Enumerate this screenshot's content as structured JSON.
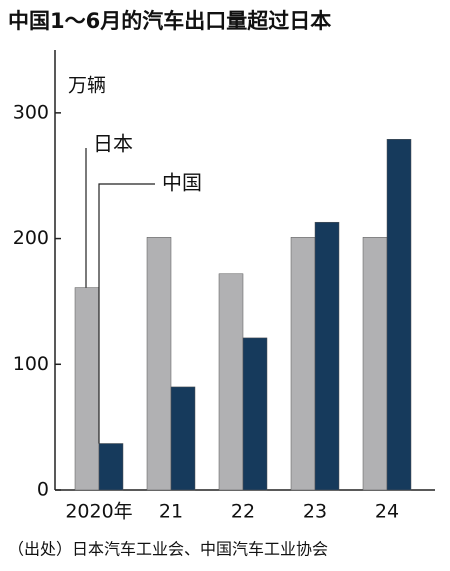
{
  "chart_data": {
    "type": "bar",
    "title": "中国1～6月的汽车出口量超过日本",
    "y_label": "万辆",
    "source": "（出处）日本汽车工业会、中国汽车工业协会",
    "categories": [
      "2020年",
      "21",
      "22",
      "23",
      "24"
    ],
    "series": [
      {
        "name": "日本",
        "color": "#b1b1b3",
        "values": [
          161,
          201,
          172,
          201,
          201
        ]
      },
      {
        "name": "中国",
        "color": "#163a5c",
        "values": [
          37,
          82,
          121,
          213,
          279
        ]
      }
    ],
    "ylim": [
      0,
      350
    ],
    "yticks": [
      0,
      100,
      200,
      300
    ],
    "grid": false
  }
}
